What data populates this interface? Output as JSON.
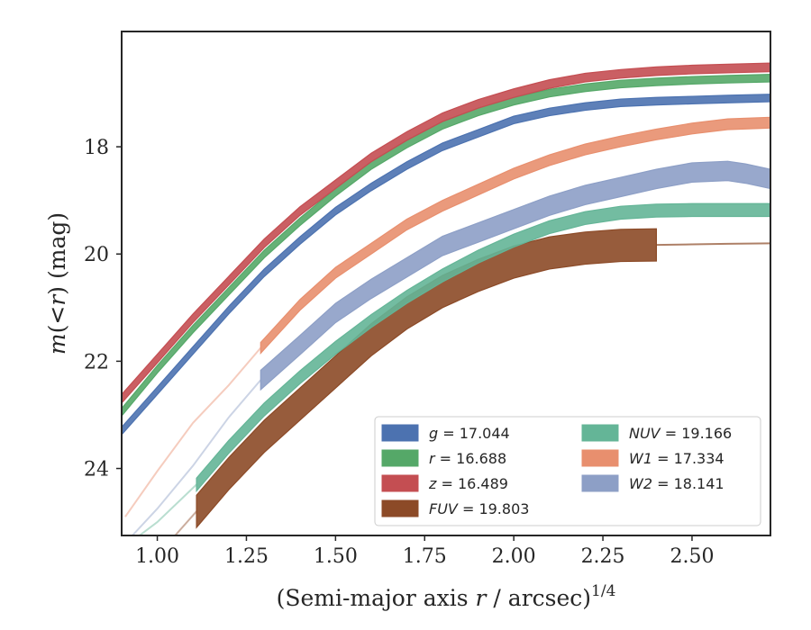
{
  "chart_data": {
    "type": "line",
    "title": "",
    "xlabel": "(Semi-major axis r / arcsec)^1/4",
    "xlabel_parts": {
      "pre": "(Semi-major axis ",
      "var": "r",
      "post": " / arcsec)",
      "sup": "1/4"
    },
    "ylabel": "m(< r) (mag)",
    "ylabel_parts": {
      "m": "m",
      "open": "(",
      "lt": "<",
      "r": "r",
      "close": ")",
      "unit": " (mag)"
    },
    "xlim": [
      0.9,
      2.72
    ],
    "ylim": [
      25.25,
      15.85
    ],
    "y_inverted": true,
    "xticks": [
      1.0,
      1.25,
      1.5,
      1.75,
      2.0,
      2.25,
      2.5
    ],
    "xtick_labels": [
      "1.00",
      "1.25",
      "1.50",
      "1.75",
      "2.00",
      "2.25",
      "2.50"
    ],
    "yticks": [
      18,
      20,
      22,
      24
    ],
    "ytick_labels": [
      "18",
      "20",
      "22",
      "24"
    ],
    "grid": false,
    "legend_placement": "lower-right",
    "series": [
      {
        "name": "g = 17.044",
        "sym": "g",
        "val": "17.044",
        "color": "#4c72b0",
        "x": [
          0.9,
          1.0,
          1.1,
          1.2,
          1.3,
          1.4,
          1.5,
          1.6,
          1.7,
          1.8,
          1.9,
          2.0,
          2.1,
          2.2,
          2.3,
          2.4,
          2.5,
          2.6,
          2.72
        ],
        "y": [
          23.3,
          22.55,
          21.8,
          21.05,
          20.35,
          19.75,
          19.2,
          18.75,
          18.35,
          18.0,
          17.75,
          17.5,
          17.35,
          17.25,
          17.18,
          17.15,
          17.13,
          17.11,
          17.09
        ],
        "halfwidth": [
          0.07
        ],
        "faint_until": null,
        "thick_until": null
      },
      {
        "name": "r = 16.688",
        "sym": "r",
        "val": "16.688",
        "color": "#55a868",
        "x": [
          0.9,
          1.0,
          1.1,
          1.2,
          1.3,
          1.4,
          1.5,
          1.6,
          1.7,
          1.8,
          1.9,
          2.0,
          2.1,
          2.2,
          2.3,
          2.4,
          2.5,
          2.6,
          2.72
        ],
        "y": [
          22.95,
          22.15,
          21.4,
          20.7,
          20.0,
          19.4,
          18.85,
          18.35,
          17.95,
          17.6,
          17.35,
          17.15,
          17.0,
          16.9,
          16.83,
          16.79,
          16.76,
          16.74,
          16.72
        ],
        "halfwidth": [
          0.07
        ],
        "faint_until": null,
        "thick_until": null
      },
      {
        "name": "z = 16.489",
        "sym": "z",
        "val": "16.489",
        "color": "#c44e52",
        "x": [
          0.9,
          1.0,
          1.1,
          1.2,
          1.3,
          1.4,
          1.5,
          1.6,
          1.7,
          1.8,
          1.9,
          2.0,
          2.1,
          2.2,
          2.3,
          2.4,
          2.5,
          2.6,
          2.72
        ],
        "y": [
          22.7,
          21.95,
          21.2,
          20.5,
          19.8,
          19.2,
          18.7,
          18.2,
          17.8,
          17.45,
          17.2,
          17.0,
          16.83,
          16.71,
          16.64,
          16.59,
          16.56,
          16.54,
          16.52
        ],
        "halfwidth": [
          0.08
        ],
        "faint_until": null,
        "thick_until": null
      },
      {
        "name": "FUV = 19.803",
        "sym": "FUV",
        "val": "19.803",
        "color": "#8c4a27",
        "x": [
          1.05,
          1.11,
          1.2,
          1.3,
          1.4,
          1.5,
          1.6,
          1.7,
          1.8,
          1.9,
          2.0,
          2.1,
          2.2,
          2.3,
          2.4,
          2.5,
          2.6,
          2.72
        ],
        "y": [
          25.25,
          24.8,
          24.1,
          23.4,
          22.8,
          22.2,
          21.6,
          21.1,
          20.7,
          20.4,
          20.15,
          19.98,
          19.89,
          19.84,
          19.83,
          19.82,
          19.81,
          19.8
        ],
        "halfwidth": [
          0.3
        ],
        "faint_until": 1.11,
        "thick_until": 2.4
      },
      {
        "name": "NUV = 19.166",
        "sym": "NUV",
        "val": "19.166",
        "color": "#64b597",
        "x": [
          0.95,
          1.0,
          1.11,
          1.2,
          1.3,
          1.4,
          1.5,
          1.6,
          1.7,
          1.8,
          1.9,
          2.0,
          2.1,
          2.2,
          2.3,
          2.4,
          2.5,
          2.6,
          2.72
        ],
        "y": [
          25.25,
          25.0,
          24.3,
          23.6,
          22.9,
          22.3,
          21.75,
          21.25,
          20.8,
          20.4,
          20.05,
          19.75,
          19.5,
          19.33,
          19.23,
          19.19,
          19.18,
          19.18,
          19.18
        ],
        "halfwidth": [
          0.12
        ],
        "faint_until": 1.11,
        "thick_until": null
      },
      {
        "name": "W1 = 17.334",
        "sym": "W1",
        "val": "17.334",
        "color": "#e88f6e",
        "x": [
          0.91,
          1.0,
          1.1,
          1.2,
          1.29,
          1.4,
          1.5,
          1.6,
          1.7,
          1.8,
          1.9,
          2.0,
          2.1,
          2.2,
          2.3,
          2.4,
          2.5,
          2.6,
          2.72
        ],
        "y": [
          24.9,
          24.05,
          23.15,
          22.45,
          21.75,
          20.95,
          20.35,
          19.9,
          19.45,
          19.1,
          18.8,
          18.5,
          18.25,
          18.05,
          17.9,
          17.77,
          17.66,
          17.58,
          17.55
        ],
        "halfwidth": [
          0.1
        ],
        "faint_until": 1.29,
        "thick_until": null
      },
      {
        "name": "W2 = 18.141",
        "sym": "W2",
        "val": "18.141",
        "color": "#8d9fc6",
        "x": [
          0.93,
          1.0,
          1.1,
          1.2,
          1.29,
          1.4,
          1.5,
          1.6,
          1.7,
          1.8,
          1.9,
          2.0,
          2.1,
          2.2,
          2.3,
          2.4,
          2.5,
          2.6,
          2.65,
          2.72
        ],
        "y": [
          25.25,
          24.75,
          23.95,
          23.05,
          22.35,
          21.7,
          21.1,
          20.65,
          20.25,
          19.85,
          19.6,
          19.35,
          19.1,
          18.9,
          18.75,
          18.6,
          18.48,
          18.45,
          18.5,
          18.6
        ],
        "halfwidth": [
          0.18
        ],
        "faint_until": 1.29,
        "thick_until": null
      }
    ]
  }
}
